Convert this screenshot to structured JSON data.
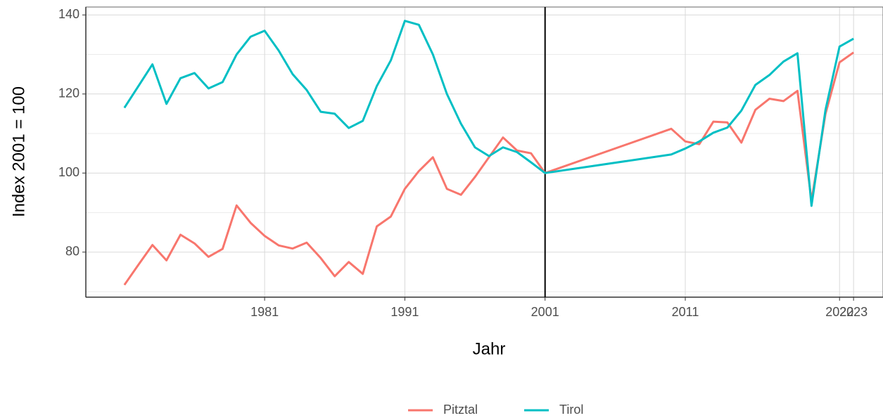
{
  "chart_data": {
    "type": "line",
    "xlabel": "Jahr",
    "ylabel": "Index 2001 = 100",
    "x": [
      1971,
      1972,
      1973,
      1974,
      1975,
      1976,
      1977,
      1978,
      1979,
      1980,
      1981,
      1982,
      1983,
      1984,
      1985,
      1986,
      1987,
      1988,
      1989,
      1990,
      1991,
      1992,
      1993,
      1994,
      1995,
      1996,
      1997,
      1998,
      1999,
      2000,
      2001,
      2010,
      2011,
      2012,
      2013,
      2014,
      2015,
      2016,
      2017,
      2018,
      2019,
      2020,
      2021,
      2022,
      2023
    ],
    "series": [
      {
        "name": "Pitztal",
        "color": "#F8766D",
        "values": [
          71.7,
          76.8,
          81.8,
          77.9,
          84.4,
          82.2,
          78.8,
          80.8,
          91.8,
          87.4,
          84.1,
          81.7,
          80.9,
          82.4,
          78.5,
          73.9,
          77.5,
          74.5,
          86.5,
          89,
          96,
          100.5,
          104,
          96,
          94.5,
          99,
          104,
          109,
          105.7,
          105,
          100,
          111.2,
          108,
          107.3,
          113,
          112.8,
          107.7,
          116,
          118.8,
          118.2,
          120.8,
          93,
          115,
          128,
          130.5
        ]
      },
      {
        "name": "Tirol",
        "color": "#00BFC4",
        "values": [
          116.5,
          122,
          127.5,
          117.5,
          124,
          125.3,
          121.4,
          123,
          130,
          134.5,
          136,
          131,
          125,
          121,
          115.5,
          115,
          111.4,
          113.2,
          122,
          128.5,
          138.5,
          137.5,
          130,
          120,
          112.5,
          106.5,
          104.3,
          106.5,
          105.3,
          102.7,
          100,
          104.7,
          106.2,
          108,
          110.2,
          111.5,
          115.8,
          122.3,
          124.8,
          128.2,
          130.3,
          91.7,
          116,
          132,
          134
        ]
      }
    ],
    "vline": 2001,
    "xlim": [
      1968.25,
      2025.1
    ],
    "xticks": [
      1981,
      1991,
      2001,
      2011,
      2022,
      2023
    ],
    "ylim": [
      68.6,
      142
    ],
    "yticks": [
      80,
      100,
      120,
      140
    ],
    "yminor": [
      70,
      90,
      110,
      130
    ],
    "grid": true,
    "legend": "bottom"
  }
}
